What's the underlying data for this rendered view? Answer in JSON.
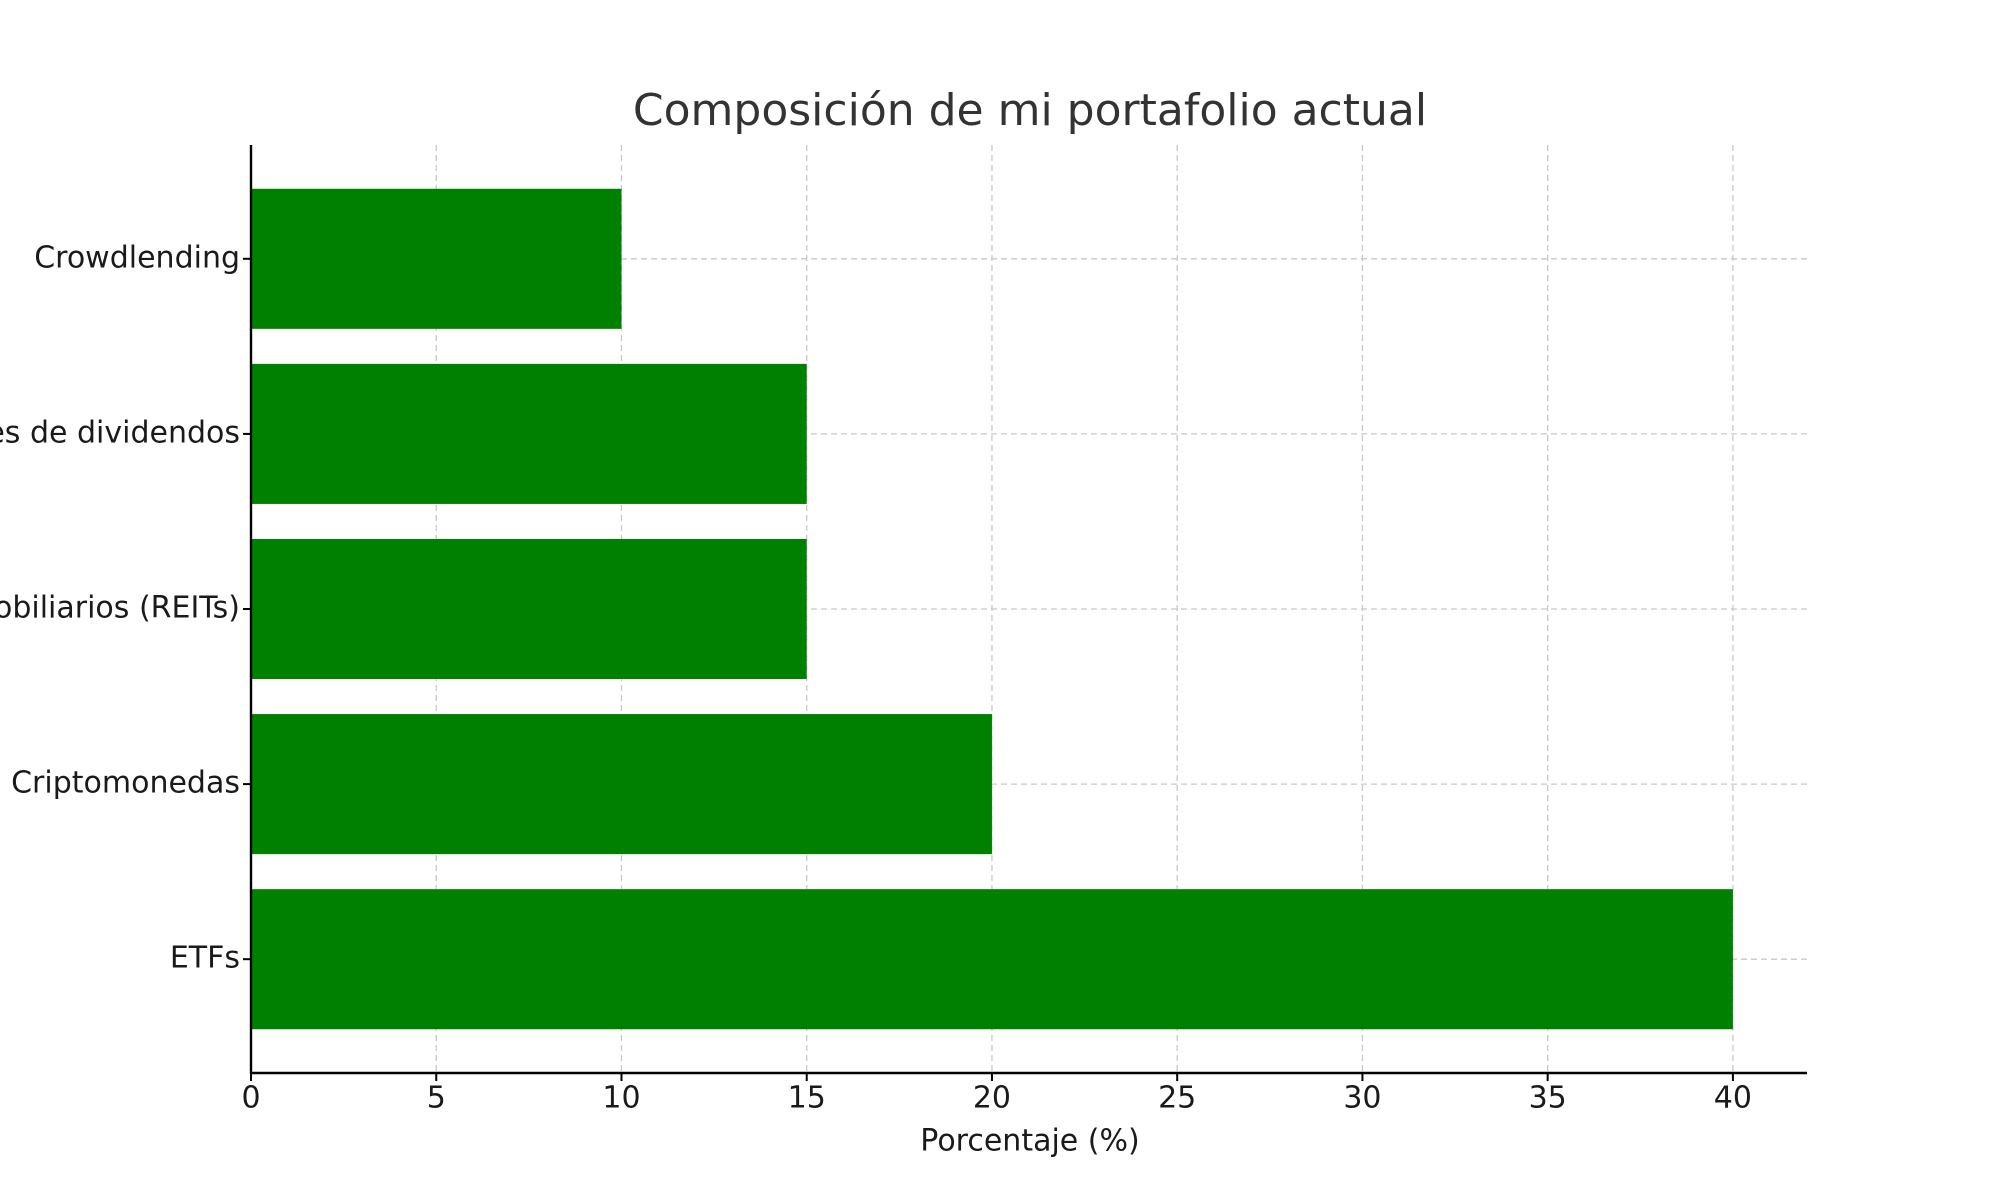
{
  "chart_data": {
    "type": "barh",
    "title": "Composición de mi portafolio actual",
    "xlabel": "Porcentaje (%)",
    "categories": [
      "ETFs",
      "Criptomonedas",
      "Fondos inmobiliarios (REITs)",
      "Acciones de dividendos",
      "Crowdlending"
    ],
    "values": [
      40,
      20,
      15,
      15,
      10
    ],
    "color": "#008000",
    "xlim": [
      0,
      42
    ],
    "xticks": [
      0,
      5,
      10,
      15,
      20,
      25,
      30,
      35,
      40
    ],
    "grid": true
  }
}
